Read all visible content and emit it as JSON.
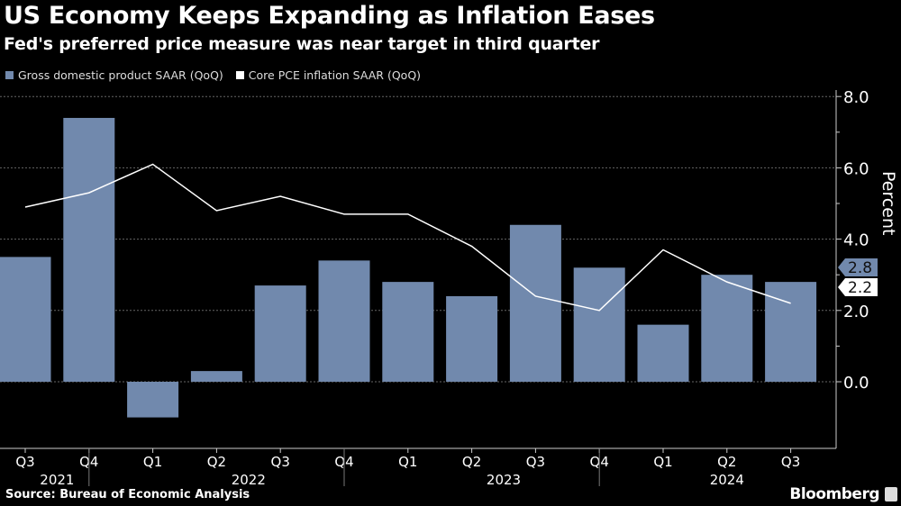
{
  "title": "US Economy Keeps Expanding as Inflation Eases",
  "subtitle": "Fed's preferred price measure was near target in third quarter",
  "source": "Source: Bureau of Economic Analysis",
  "brand": "Bloomberg",
  "chart_data": {
    "type": "bar+line",
    "categories": [
      "Q3",
      "Q4",
      "Q1",
      "Q2",
      "Q3",
      "Q4",
      "Q1",
      "Q2",
      "Q3",
      "Q4",
      "Q1",
      "Q2",
      "Q3"
    ],
    "years": [
      {
        "label": "2021",
        "from": 0,
        "to": 1
      },
      {
        "label": "2022",
        "from": 2,
        "to": 5
      },
      {
        "label": "2023",
        "from": 6,
        "to": 9
      },
      {
        "label": "2024",
        "from": 10,
        "to": 12
      }
    ],
    "series": [
      {
        "name": "Gross domestic product SAAR (QoQ)",
        "type": "bar",
        "color": "#7189ad",
        "values": [
          3.5,
          7.4,
          -1.0,
          0.3,
          2.7,
          3.4,
          2.8,
          2.4,
          4.4,
          3.2,
          1.6,
          3.0,
          2.8
        ],
        "last_label": "2.8"
      },
      {
        "name": "Core PCE inflation SAAR (QoQ)",
        "type": "line",
        "color": "#ffffff",
        "values": [
          4.9,
          5.3,
          6.1,
          4.8,
          5.2,
          4.7,
          4.7,
          3.8,
          2.4,
          2.0,
          3.7,
          2.8,
          2.2
        ],
        "last_label": "2.2"
      }
    ],
    "ylabel": "Percent",
    "ylim": [
      -1.6,
      8.4
    ],
    "yticks": [
      "0.0",
      "2.0",
      "4.0",
      "6.0",
      "8.0"
    ],
    "grid": true,
    "legend": "top-left",
    "axis_side": "right"
  }
}
